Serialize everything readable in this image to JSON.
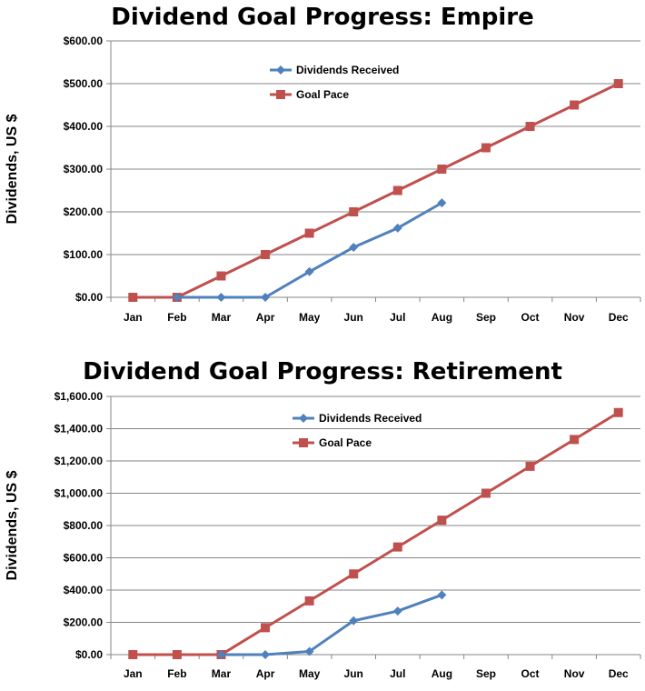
{
  "chart_data": [
    {
      "id": "empire",
      "type": "line",
      "title": "Dividend Goal Progress: Empire",
      "xlabel": "",
      "ylabel": "Dividends, US $",
      "categories": [
        "Jan",
        "Feb",
        "Mar",
        "Apr",
        "May",
        "Jun",
        "Jul",
        "Aug",
        "Sep",
        "Oct",
        "Nov",
        "Dec"
      ],
      "ylim": [
        0,
        600
      ],
      "yticks": [
        "$0.00",
        "$100.00",
        "$200.00",
        "$300.00",
        "$400.00",
        "$500.00",
        "$600.00"
      ],
      "grid": true,
      "legend": "top-left",
      "series": [
        {
          "name": "Dividends Received",
          "color": "#4F81BD",
          "marker": "diamond",
          "values": [
            null,
            0,
            0,
            0,
            60,
            117,
            162,
            221,
            null,
            null,
            null,
            null
          ]
        },
        {
          "name": "Goal Pace",
          "color": "#C0504D",
          "marker": "square",
          "values": [
            0,
            0,
            50,
            100,
            150,
            200,
            250,
            300,
            350,
            400,
            450,
            500
          ]
        }
      ]
    },
    {
      "id": "retirement",
      "type": "line",
      "title": "Dividend Goal Progress: Retirement",
      "xlabel": "",
      "ylabel": "Dividends, US $",
      "categories": [
        "Jan",
        "Feb",
        "Mar",
        "Apr",
        "May",
        "Jun",
        "Jul",
        "Aug",
        "Sep",
        "Oct",
        "Nov",
        "Dec"
      ],
      "ylim": [
        0,
        1600
      ],
      "yticks": [
        "$0.00",
        "$200.00",
        "$400.00",
        "$600.00",
        "$800.00",
        "$1,000.00",
        "$1,200.00",
        "$1,400.00",
        "$1,600.00"
      ],
      "grid": true,
      "legend": "top-left",
      "series": [
        {
          "name": "Dividends Received",
          "color": "#4F81BD",
          "marker": "diamond",
          "values": [
            null,
            null,
            0,
            0,
            20,
            210,
            270,
            370,
            null,
            null,
            null,
            null
          ]
        },
        {
          "name": "Goal Pace",
          "color": "#C0504D",
          "marker": "square",
          "values": [
            0,
            0,
            0,
            167,
            333,
            500,
            667,
            833,
            1000,
            1167,
            1333,
            1500
          ]
        }
      ]
    }
  ]
}
